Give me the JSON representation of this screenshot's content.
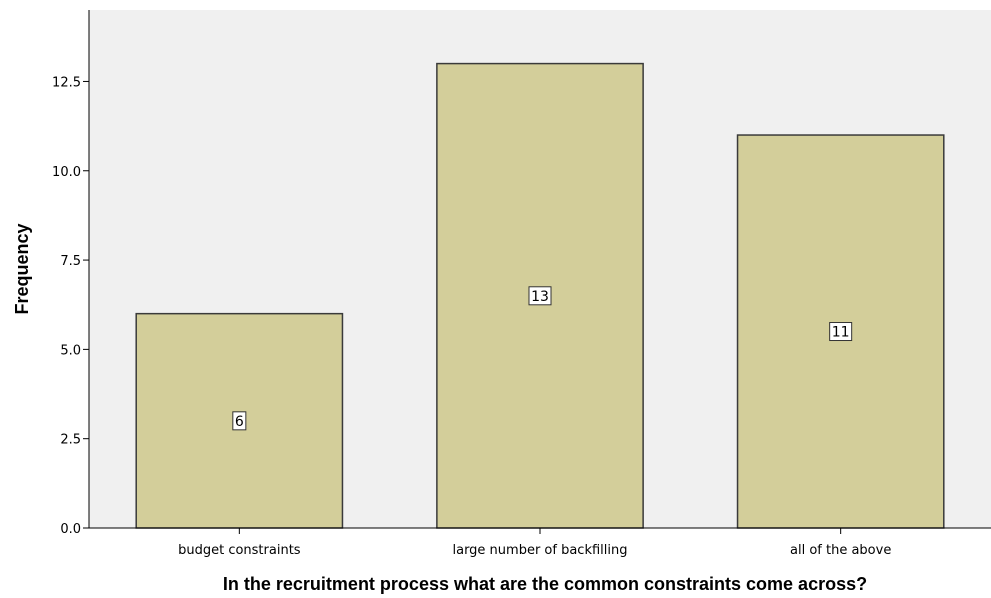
{
  "chart_data": {
    "type": "bar",
    "categories": [
      "budget constraints",
      "large number of backfilling",
      "all of the above"
    ],
    "values": [
      6,
      13,
      11
    ],
    "data_labels": [
      "6",
      "13",
      "11"
    ],
    "title": "",
    "xlabel": "In the recruitment process what are the common constraints come across?",
    "ylabel": "Frequency",
    "ylim": [
      0,
      14.5
    ],
    "yticks": [
      0,
      2.5,
      5,
      7.5,
      10,
      12.5
    ],
    "ytick_labels": [
      "0.0",
      "2.5",
      "5.0",
      "7.5",
      "10.0",
      "12.5"
    ],
    "grid": false,
    "legend": "none",
    "colors": {
      "plot_background": "#f0f0f0",
      "bar_fill": "#d3ce9a",
      "bar_stroke": "#3a3a3a",
      "label_box": "#ffffff"
    }
  }
}
